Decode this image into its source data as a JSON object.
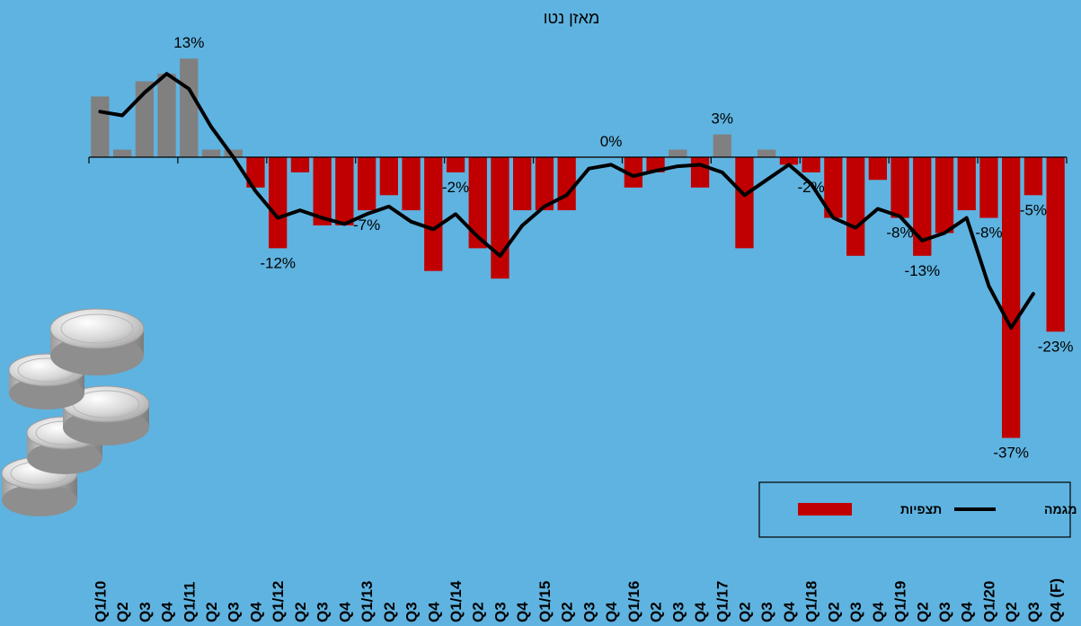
{
  "chart_data": {
    "type": "bar",
    "title": "מאזן נטו",
    "categories": [
      "Q1/10",
      "Q2",
      "Q3",
      "Q4",
      "Q1/11",
      "Q2",
      "Q3",
      "Q4",
      "Q1/12",
      "Q2",
      "Q3",
      "Q4",
      "Q1/13",
      "Q2",
      "Q3",
      "Q4",
      "Q1/14",
      "Q2",
      "Q3",
      "Q4",
      "Q1/15",
      "Q2",
      "Q3",
      "Q4",
      "Q1/16",
      "Q2",
      "Q3",
      "Q4",
      "Q1/17",
      "Q2",
      "Q3",
      "Q4",
      "Q1/18",
      "Q2",
      "Q3",
      "Q4",
      "Q1/19",
      "Q2",
      "Q3",
      "Q4",
      "Q1/20",
      "Q2",
      "Q3",
      "Q4 (F)"
    ],
    "series": [
      {
        "name": "תצפיות",
        "type": "bar",
        "values": [
          8,
          1,
          10,
          11,
          13,
          1,
          1,
          -4,
          -12,
          -2,
          -9,
          -9,
          -7,
          -5,
          -7,
          -15,
          -2,
          -12,
          -16,
          -7,
          -7,
          -7,
          0,
          0,
          -4,
          -2,
          1,
          -4,
          3,
          -12,
          1,
          -1,
          -2,
          -8,
          -13,
          -3,
          -8,
          -13,
          -10,
          -7,
          -8,
          -37,
          -5,
          -23
        ],
        "positive_color": "#808080",
        "negative_color": "#C00000"
      },
      {
        "name": "מגמה",
        "type": "line",
        "values": [
          6,
          5.5,
          8.5,
          11,
          9,
          4,
          0,
          -4.5,
          -8,
          -7,
          -8,
          -8.8,
          -7.5,
          -6.5,
          -8.5,
          -9.5,
          -7.5,
          -10.5,
          -13,
          -9,
          -6.5,
          -5,
          -1.5,
          -1,
          -2.5,
          -1.8,
          -1.2,
          -1,
          -2,
          -5,
          -3,
          -1,
          -3.5,
          -8,
          -9.3,
          -6.8,
          -7.8,
          -11,
          -10,
          -8,
          -17,
          -22.5,
          -18,
          null
        ],
        "color": "#000000"
      }
    ],
    "data_labels": [
      {
        "index": 4,
        "text": "13%"
      },
      {
        "index": 8,
        "text": "-12%"
      },
      {
        "index": 12,
        "text": "-7%"
      },
      {
        "index": 16,
        "text": "-2%"
      },
      {
        "index": 23,
        "text": "0%"
      },
      {
        "index": 28,
        "text": "3%"
      },
      {
        "index": 32,
        "text": "-2%"
      },
      {
        "index": 36,
        "text": "-8%"
      },
      {
        "index": 37,
        "text": "-13%"
      },
      {
        "index": 40,
        "text": "-8%"
      },
      {
        "index": 41,
        "text": "-37%"
      },
      {
        "index": 42,
        "text": "-5%"
      },
      {
        "index": 43,
        "text": "-23%"
      }
    ],
    "ylim": [
      -39,
      15
    ],
    "grid": false,
    "legend": {
      "placement": "bottom-right",
      "entries": [
        "מגמה",
        "תצפיות"
      ]
    }
  },
  "decoration": {
    "icon": "coins-stack-icon"
  }
}
